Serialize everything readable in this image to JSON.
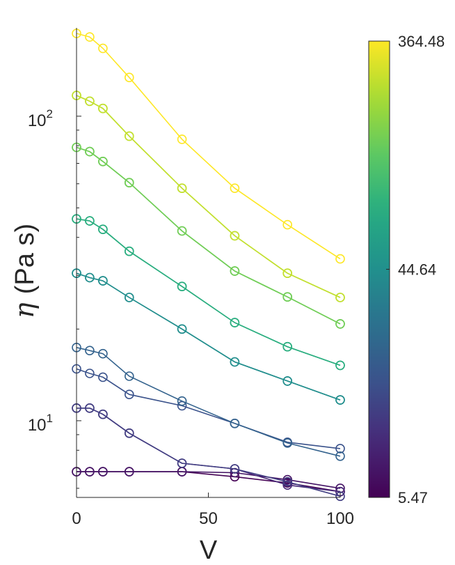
{
  "chart_data": {
    "type": "line",
    "title": "",
    "xlabel": "V",
    "ylabel_symbol": "η",
    "ylabel_units": "(Pa s)",
    "yscale": "log",
    "xlim": [
      0,
      100
    ],
    "ylim": [
      5.6,
      195
    ],
    "xticks": [
      0,
      50,
      100
    ],
    "yticks": [
      {
        "value": 10,
        "base": "10",
        "exp": "1"
      },
      {
        "value": 100,
        "base": "10",
        "exp": "2"
      }
    ],
    "grid": false,
    "legend": "none",
    "marker": "open-circle",
    "x": [
      0,
      5,
      10,
      20,
      40,
      60,
      80,
      100
    ],
    "colorbar": {
      "colormap": "viridis",
      "scale": "log",
      "min": 5.47,
      "max": 364.48,
      "tick_labels": [
        "364.48",
        "44.64",
        "5.47"
      ],
      "tick_values": [
        364.48,
        44.64,
        5.47
      ]
    },
    "series": [
      {
        "color_value": 5.47,
        "values": [
          6.8,
          6.8,
          6.8,
          6.8,
          6.8,
          6.55,
          6.25,
          5.85
        ]
      },
      {
        "color_value": 7.0,
        "values": [
          6.8,
          6.8,
          6.8,
          6.8,
          6.8,
          6.75,
          6.4,
          6.0
        ]
      },
      {
        "color_value": 9.0,
        "values": [
          11.0,
          11.0,
          10.5,
          9.1,
          7.25,
          6.95,
          6.15,
          5.85
        ]
      },
      {
        "color_value": 12.0,
        "values": [
          11.0,
          11.0,
          10.5,
          9.1,
          7.25,
          6.95,
          6.3,
          5.65
        ]
      },
      {
        "color_value": 16.0,
        "values": [
          14.8,
          14.3,
          13.9,
          12.2,
          11.2,
          9.8,
          8.5,
          8.1
        ]
      },
      {
        "color_value": 21.0,
        "values": [
          17.4,
          17.0,
          16.6,
          14.0,
          11.6,
          9.8,
          8.45,
          7.65
        ]
      },
      {
        "color_value": 30.0,
        "values": [
          30.5,
          29.5,
          28.8,
          25.4,
          20.0,
          15.6,
          13.5,
          11.7
        ]
      },
      {
        "color_value": 44.64,
        "values": [
          30.5,
          29.5,
          28.8,
          25.4,
          20.0,
          15.6,
          13.5,
          11.7
        ]
      },
      {
        "color_value": 60.0,
        "values": [
          46.0,
          45.3,
          42.5,
          36.0,
          27.6,
          21.0,
          17.5,
          15.2
        ]
      },
      {
        "color_value": 80.0,
        "values": [
          46.0,
          45.3,
          42.5,
          36.0,
          27.6,
          21.0,
          17.5,
          15.2
        ]
      },
      {
        "color_value": 110.0,
        "values": [
          79.0,
          76.5,
          71.0,
          60.5,
          42.0,
          31.0,
          25.5,
          20.8
        ]
      },
      {
        "color_value": 150.0,
        "values": [
          79.0,
          76.5,
          71.0,
          60.5,
          42.0,
          31.0,
          25.5,
          20.8
        ]
      },
      {
        "color_value": 200.0,
        "values": [
          117.0,
          112.0,
          106.0,
          86.0,
          58.0,
          40.5,
          30.5,
          25.4
        ]
      },
      {
        "color_value": 260.0,
        "values": [
          117.0,
          112.0,
          106.0,
          86.0,
          58.0,
          40.5,
          30.5,
          25.4
        ]
      },
      {
        "color_value": 364.48,
        "values": [
          187.0,
          182.0,
          167.0,
          134.0,
          84.0,
          58.0,
          44.0,
          34.0
        ]
      }
    ]
  }
}
